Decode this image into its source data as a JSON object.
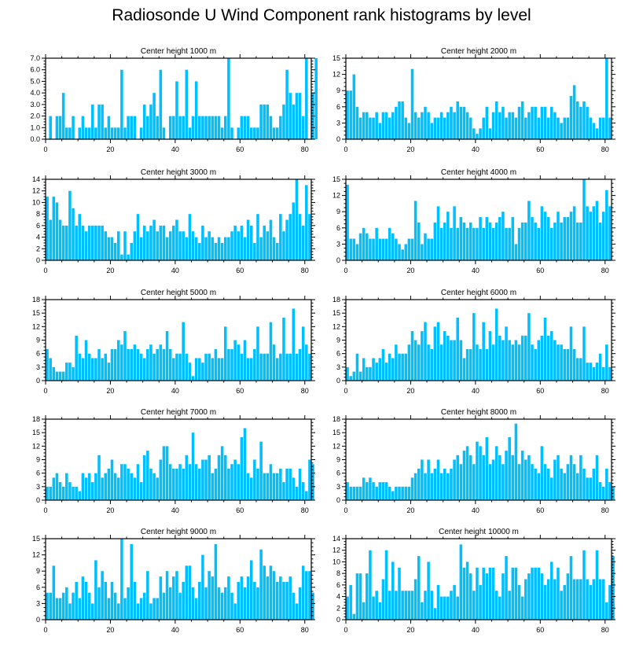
{
  "title": "Radiosonde U Wind Component rank histograms by level",
  "chart_data": [
    {
      "type": "bar",
      "title": "Center height 1000 m",
      "ylim": [
        0,
        7
      ],
      "yticks": [
        0,
        1,
        2,
        3,
        4,
        5,
        6,
        7
      ],
      "ytick_labels": [
        "0.0",
        "1.0",
        "2.0",
        "3.0",
        "4.0",
        "5.0",
        "6.0",
        "7.0"
      ],
      "xlim": [
        0,
        82
      ],
      "xticks": [
        0,
        20,
        40,
        60,
        80
      ],
      "values": [
        0,
        2,
        0,
        2,
        2,
        4,
        1,
        1,
        2,
        0,
        1,
        2,
        1,
        1,
        3,
        1,
        3,
        3,
        1,
        2,
        1,
        1,
        1,
        6,
        1,
        2,
        2,
        2,
        0,
        1,
        3,
        2,
        3,
        4,
        2,
        6,
        1,
        0,
        2,
        2,
        5,
        2,
        2,
        6,
        1,
        2,
        5,
        2,
        2,
        2,
        2,
        2,
        2,
        2,
        1,
        2,
        7,
        1,
        0,
        1,
        2,
        2,
        2,
        1,
        1,
        1,
        3,
        3,
        3,
        2,
        1,
        1,
        2,
        3,
        6,
        4,
        3,
        4,
        4,
        2,
        7,
        0,
        4,
        7
      ]
    },
    {
      "type": "bar",
      "title": "Center height 2000 m",
      "ylim": [
        0,
        15
      ],
      "yticks": [
        0,
        3,
        6,
        9,
        12,
        15
      ],
      "ytick_labels": [
        "0",
        "3",
        "6",
        "9",
        "12",
        "15"
      ],
      "xlim": [
        0,
        82
      ],
      "xticks": [
        0,
        20,
        40,
        60,
        80
      ],
      "values": [
        9,
        9,
        12,
        6,
        4,
        5,
        5,
        4,
        4,
        5,
        3,
        5,
        5,
        4,
        5,
        6,
        7,
        7,
        4,
        3,
        13,
        5,
        4,
        5,
        6,
        5,
        3,
        4,
        4,
        5,
        4,
        5,
        6,
        5,
        7,
        6,
        6,
        5,
        4,
        2,
        1,
        2,
        4,
        6,
        2,
        5,
        7,
        5,
        6,
        4,
        5,
        5,
        4,
        6,
        7,
        4,
        5,
        6,
        6,
        4,
        6,
        6,
        4,
        6,
        5,
        4,
        3,
        4,
        4,
        8,
        10,
        7,
        6,
        7,
        6,
        4,
        3,
        2,
        4,
        4,
        15,
        4
      ]
    },
    {
      "type": "bar",
      "title": "Center height 3000 m",
      "ylim": [
        0,
        14
      ],
      "yticks": [
        0,
        2,
        4,
        6,
        8,
        10,
        12,
        14
      ],
      "ytick_labels": [
        "0",
        "2",
        "4",
        "6",
        "8",
        "10",
        "12",
        "14"
      ],
      "xlim": [
        0,
        82
      ],
      "xticks": [
        0,
        20,
        40,
        60,
        80
      ],
      "values": [
        11,
        7,
        11,
        10,
        7,
        6,
        6,
        12,
        9,
        6,
        8,
        6,
        5,
        6,
        6,
        6,
        6,
        6,
        5,
        4,
        4,
        3,
        5,
        1,
        5,
        1,
        3,
        5,
        8,
        4,
        6,
        5,
        6,
        7,
        5,
        6,
        6,
        4,
        5,
        6,
        7,
        5,
        5,
        4,
        8,
        5,
        4,
        3,
        6,
        4,
        5,
        4,
        3,
        4,
        3,
        4,
        4,
        5,
        6,
        5,
        6,
        4,
        7,
        6,
        3,
        8,
        4,
        6,
        5,
        7,
        4,
        3,
        8,
        5,
        7,
        8,
        10,
        14,
        8,
        6,
        13,
        8
      ]
    },
    {
      "type": "bar",
      "title": "Center height 4000 m",
      "ylim": [
        0,
        15
      ],
      "yticks": [
        0,
        3,
        6,
        9,
        12,
        15
      ],
      "ytick_labels": [
        "0",
        "3",
        "6",
        "9",
        "12",
        "15"
      ],
      "xlim": [
        0,
        82
      ],
      "xticks": [
        0,
        20,
        40,
        60,
        80
      ],
      "values": [
        14,
        4,
        4,
        3,
        5,
        6,
        5,
        4,
        4,
        6,
        4,
        4,
        4,
        6,
        5,
        4,
        3,
        2,
        3,
        4,
        4,
        11,
        7,
        3,
        5,
        4,
        4,
        7,
        10,
        6,
        7,
        9,
        6,
        10,
        6,
        8,
        7,
        6,
        7,
        6,
        6,
        8,
        6,
        8,
        7,
        6,
        7,
        8,
        9,
        6,
        6,
        8,
        3,
        6,
        7,
        7,
        11,
        8,
        7,
        6,
        10,
        9,
        8,
        6,
        7,
        9,
        7,
        8,
        8,
        9,
        10,
        7,
        7,
        15,
        10,
        9,
        10,
        11,
        7,
        9,
        13,
        10
      ]
    },
    {
      "type": "bar",
      "title": "Center height 5000 m",
      "ylim": [
        0,
        18
      ],
      "yticks": [
        0,
        3,
        6,
        9,
        12,
        15,
        18
      ],
      "ytick_labels": [
        "0",
        "3",
        "6",
        "9",
        "12",
        "15",
        "18"
      ],
      "xlim": [
        0,
        82
      ],
      "xticks": [
        0,
        20,
        40,
        60,
        80
      ],
      "values": [
        7,
        5,
        3,
        2,
        2,
        2,
        4,
        4,
        3,
        10,
        6,
        5,
        9,
        6,
        5,
        5,
        7,
        5,
        6,
        4,
        7,
        7,
        9,
        8,
        11,
        7,
        7,
        8,
        7,
        6,
        5,
        7,
        8,
        6,
        7,
        8,
        7,
        11,
        7,
        5,
        6,
        6,
        13,
        6,
        4,
        1,
        5,
        5,
        4,
        6,
        6,
        5,
        7,
        5,
        5,
        12,
        7,
        7,
        9,
        8,
        6,
        9,
        5,
        5,
        7,
        12,
        6,
        6,
        6,
        13,
        8,
        5,
        6,
        14,
        6,
        6,
        16,
        6,
        7,
        12,
        8,
        6
      ]
    },
    {
      "type": "bar",
      "title": "Center height 6000 m",
      "ylim": [
        0,
        18
      ],
      "yticks": [
        0,
        3,
        6,
        9,
        12,
        15,
        18
      ],
      "ytick_labels": [
        "0",
        "3",
        "6",
        "9",
        "12",
        "15",
        "18"
      ],
      "xlim": [
        0,
        82
      ],
      "xticks": [
        0,
        20,
        40,
        60,
        80
      ],
      "values": [
        3,
        1,
        2,
        6,
        2,
        5,
        3,
        3,
        5,
        4,
        5,
        7,
        4,
        6,
        5,
        8,
        6,
        6,
        6,
        8,
        11,
        9,
        8,
        11,
        13,
        8,
        7,
        12,
        13,
        8,
        11,
        10,
        9,
        9,
        14,
        9,
        5,
        7,
        7,
        15,
        8,
        7,
        13,
        7,
        11,
        8,
        16,
        10,
        9,
        12,
        9,
        8,
        9,
        8,
        10,
        10,
        15,
        8,
        7,
        9,
        10,
        14,
        10,
        11,
        9,
        8,
        8,
        7,
        7,
        12,
        7,
        5,
        5,
        12,
        4,
        4,
        3,
        4,
        6,
        3,
        8,
        3
      ]
    },
    {
      "type": "bar",
      "title": "Center height 7000 m",
      "ylim": [
        0,
        18
      ],
      "yticks": [
        0,
        3,
        6,
        9,
        12,
        15,
        18
      ],
      "ytick_labels": [
        "0",
        "3",
        "6",
        "9",
        "12",
        "15",
        "18"
      ],
      "xlim": [
        0,
        82
      ],
      "xticks": [
        0,
        20,
        40,
        60,
        80
      ],
      "values": [
        3,
        3,
        5,
        6,
        4,
        3,
        6,
        4,
        3,
        3,
        2,
        6,
        5,
        6,
        4,
        6,
        10,
        5,
        6,
        7,
        9,
        6,
        5,
        8,
        8,
        7,
        6,
        5,
        8,
        4,
        10,
        11,
        7,
        6,
        5,
        9,
        12,
        12,
        8,
        7,
        7,
        8,
        7,
        10,
        8,
        15,
        8,
        7,
        9,
        9,
        10,
        6,
        7,
        10,
        12,
        10,
        7,
        8,
        9,
        8,
        14,
        16,
        6,
        5,
        9,
        7,
        13,
        6,
        6,
        8,
        6,
        6,
        7,
        4,
        7,
        7,
        5,
        3,
        7,
        4,
        2,
        9,
        8
      ]
    },
    {
      "type": "bar",
      "title": "Center height 8000 m",
      "ylim": [
        0,
        18
      ],
      "yticks": [
        0,
        3,
        6,
        9,
        12,
        15,
        18
      ],
      "ytick_labels": [
        "0",
        "3",
        "6",
        "9",
        "12",
        "15",
        "18"
      ],
      "xlim": [
        0,
        82
      ],
      "xticks": [
        0,
        20,
        40,
        60,
        80
      ],
      "values": [
        4,
        3,
        3,
        3,
        3,
        5,
        4,
        5,
        4,
        3,
        4,
        4,
        4,
        3,
        2,
        3,
        3,
        3,
        3,
        3,
        5,
        6,
        7,
        9,
        6,
        9,
        6,
        7,
        9,
        6,
        7,
        6,
        7,
        9,
        10,
        8,
        11,
        12,
        10,
        8,
        13,
        12,
        10,
        14,
        8,
        9,
        12,
        10,
        8,
        11,
        14,
        10,
        17,
        8,
        11,
        9,
        10,
        8,
        7,
        6,
        12,
        8,
        7,
        5,
        9,
        10,
        7,
        6,
        8,
        10,
        8,
        6,
        10,
        7,
        5,
        5,
        7,
        10,
        4,
        3,
        7,
        4,
        3
      ]
    },
    {
      "type": "bar",
      "title": "Center height 9000 m",
      "ylim": [
        0,
        15
      ],
      "yticks": [
        0,
        3,
        6,
        9,
        12,
        15
      ],
      "ytick_labels": [
        "0",
        "3",
        "6",
        "9",
        "12",
        "15"
      ],
      "xlim": [
        0,
        82
      ],
      "xticks": [
        0,
        20,
        40,
        60,
        80
      ],
      "values": [
        5,
        5,
        10,
        4,
        4,
        5,
        6,
        3,
        5,
        7,
        4,
        8,
        7,
        5,
        3,
        11,
        6,
        9,
        7,
        4,
        7,
        5,
        3,
        15,
        4,
        6,
        14,
        7,
        3,
        4,
        5,
        9,
        3,
        4,
        4,
        8,
        5,
        9,
        6,
        8,
        9,
        5,
        7,
        10,
        10,
        6,
        4,
        7,
        12,
        6,
        9,
        8,
        14,
        6,
        5,
        6,
        8,
        5,
        3,
        7,
        8,
        6,
        8,
        11,
        7,
        6,
        13,
        10,
        8,
        10,
        9,
        7,
        8,
        7,
        7,
        8,
        5,
        3,
        6,
        10,
        9,
        9,
        5
      ]
    },
    {
      "type": "bar",
      "title": "Center height 10000 m",
      "ylim": [
        0,
        14
      ],
      "yticks": [
        0,
        2,
        4,
        6,
        8,
        10,
        12,
        14
      ],
      "ytick_labels": [
        "0",
        "2",
        "4",
        "6",
        "8",
        "10",
        "12",
        "14"
      ],
      "xlim": [
        0,
        82
      ],
      "xticks": [
        0,
        20,
        40,
        60,
        80
      ],
      "values": [
        4,
        6,
        1,
        8,
        8,
        3,
        8,
        12,
        4,
        5,
        3,
        7,
        12,
        5,
        10,
        5,
        9,
        5,
        5,
        5,
        5,
        7,
        11,
        3,
        5,
        10,
        5,
        2,
        6,
        4,
        4,
        4,
        5,
        6,
        4,
        13,
        9,
        10,
        8,
        5,
        9,
        6,
        9,
        8,
        9,
        9,
        5,
        4,
        8,
        11,
        5,
        9,
        9,
        6,
        4,
        7,
        8,
        9,
        9,
        9,
        8,
        6,
        7,
        10,
        7,
        9,
        5,
        6,
        8,
        11,
        7,
        7,
        7,
        12,
        7,
        6,
        7,
        12,
        7,
        7,
        3,
        6,
        11
      ]
    }
  ]
}
